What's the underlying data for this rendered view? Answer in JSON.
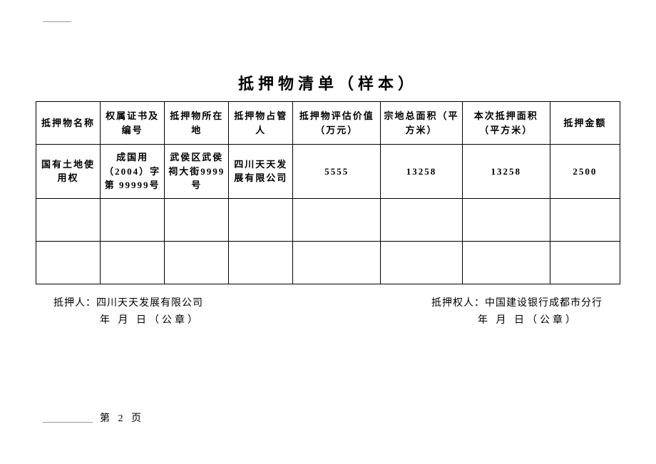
{
  "title": "抵押物清单（样本）",
  "table": {
    "columns": [
      "抵押物名称",
      "权属证书及编号",
      "抵押物所在地",
      "抵押物占管人",
      "抵押物评估价值（万元）",
      "宗地总面积（平方米）",
      "本次抵押面积（平方米）",
      "抵押金额"
    ],
    "rows": [
      [
        "国有土地使用权",
        "成国用（2004）字第 99999号",
        "武侯区武侯祠大街9999号",
        "四川天天发展有限公司",
        "5555",
        "13258",
        "13258",
        "2500"
      ],
      [
        "",
        "",
        "",
        "",
        "",
        "",
        "",
        ""
      ],
      [
        "",
        "",
        "",
        "",
        "",
        "",
        "",
        ""
      ]
    ]
  },
  "footer": {
    "left_label": "抵押人：四川天天发展有限公司",
    "left_date": "年   月   日（公章）",
    "right_label": "抵押权人：中国建设银行成都市分行",
    "right_date": "年   月   日（公章）"
  },
  "page_number": "第 2 页"
}
